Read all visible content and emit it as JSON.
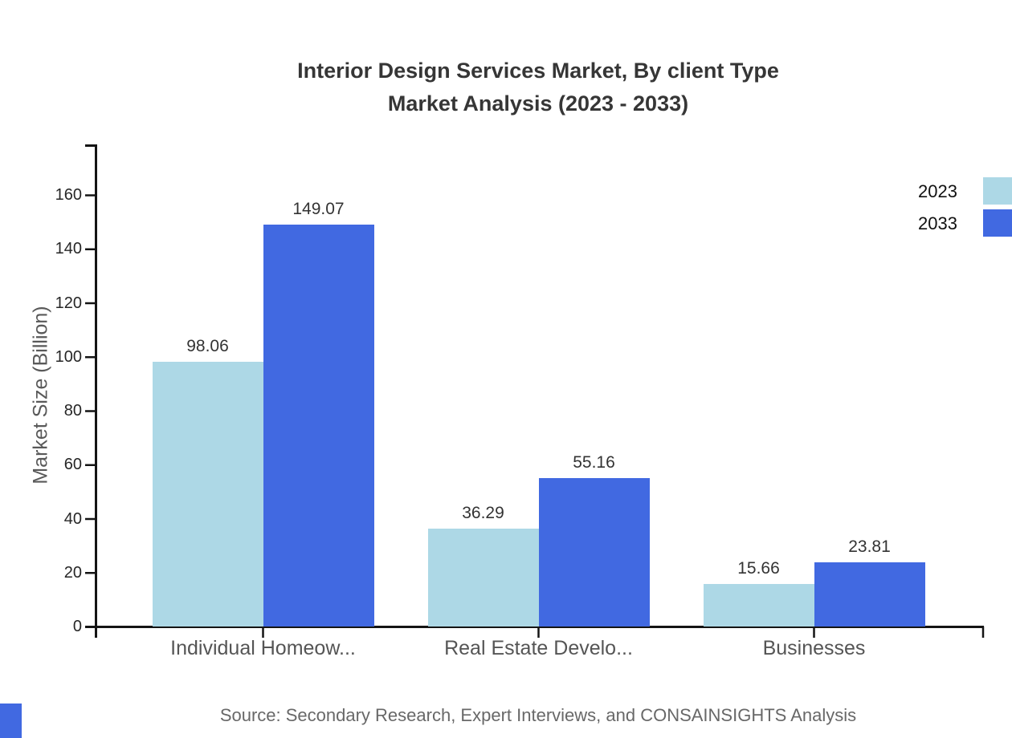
{
  "title": {
    "line1": "Interior Design Services Market, By client Type",
    "line2": "Market Analysis (2023 - 2033)"
  },
  "y_axis_label": "Market Size (Billion)",
  "source": "Source: Secondary Research, Expert Interviews, and CONSAINSIGHTS Analysis",
  "legend": {
    "items": [
      {
        "label": "2023"
      },
      {
        "label": "2033"
      }
    ]
  },
  "colors": {
    "series_2023": "#ADD8E6",
    "series_2033": "#4169E1",
    "axis": "#141414",
    "brand_mark": "#4169E1"
  },
  "chart_data": {
    "type": "bar",
    "title": "Interior Design Services Market, By client Type Market Analysis (2023 - 2033)",
    "categories": [
      "Individual Homeow...",
      "Real Estate Develo...",
      "Businesses"
    ],
    "series": [
      {
        "name": "2023",
        "color": "#ADD8E6",
        "values": [
          98.06,
          36.29,
          15.66
        ]
      },
      {
        "name": "2033",
        "color": "#4169E1",
        "values": [
          149.07,
          55.16,
          23.81
        ]
      }
    ],
    "xlabel": "",
    "ylabel": "Market Size (Billion)",
    "ylim": [
      0,
      178
    ],
    "yticks": [
      0,
      20,
      40,
      60,
      80,
      100,
      120,
      140,
      160
    ],
    "grid": false,
    "legend_position": "top-right",
    "value_labels": true
  }
}
